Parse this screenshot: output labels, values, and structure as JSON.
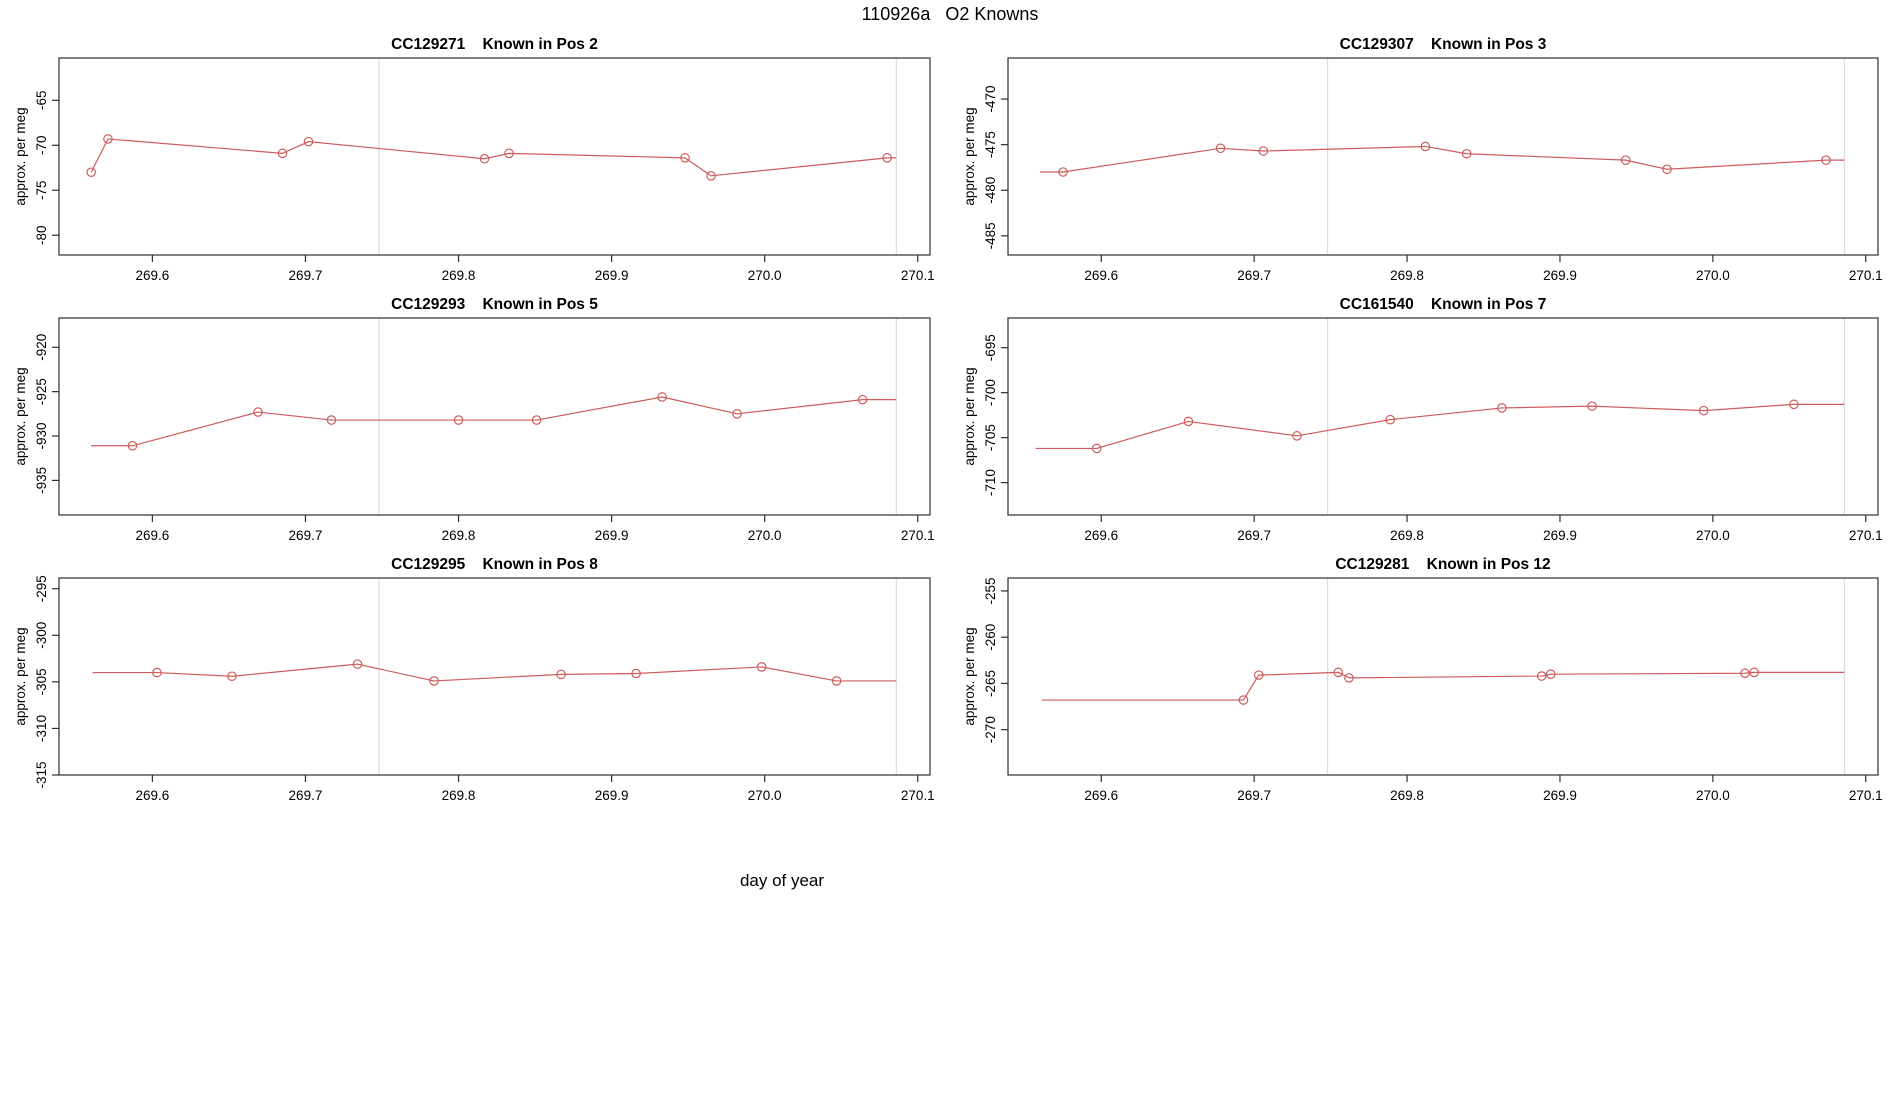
{
  "main": {
    "title": "110926a   O2 Knowns",
    "xlabel": "day of year"
  },
  "colors": {
    "series": "#CD5C5C",
    "reference_line": "#DCDCDC",
    "axis": "#2E2E2E",
    "text": "#000000",
    "background": "#FFFFFF"
  },
  "chart_data": [
    {
      "type": "line",
      "series_id": "CC129271",
      "position_label": "Known in Pos 2",
      "title": "CC129271    Known in Pos 2",
      "ylabel": "approx. per meg",
      "xlim": [
        269.539,
        270.108
      ],
      "ylim": [
        -82.2,
        -60.3
      ],
      "xticks": [
        269.6,
        269.7,
        269.8,
        269.9,
        270.0,
        270.1
      ],
      "yticks": [
        -65,
        -70,
        -75,
        -80
      ],
      "vlines": [
        269.748,
        270.086
      ],
      "points": [
        [
          269.56,
          -73.0
        ],
        [
          269.571,
          -69.3
        ],
        [
          269.685,
          -70.9
        ],
        [
          269.702,
          -69.6
        ],
        [
          269.817,
          -71.5
        ],
        [
          269.833,
          -70.9
        ],
        [
          269.948,
          -71.4
        ],
        [
          269.965,
          -73.4
        ],
        [
          270.08,
          -71.4
        ],
        [
          270.086,
          -71.4,
          0
        ]
      ]
    },
    {
      "type": "line",
      "series_id": "CC129307",
      "position_label": "Known in Pos 3",
      "title": "CC129307    Known in Pos 3",
      "ylabel": "approx. per meg",
      "xlim": [
        269.539,
        270.108
      ],
      "ylim": [
        -487.1,
        -465.5
      ],
      "xticks": [
        269.6,
        269.7,
        269.8,
        269.9,
        270.0,
        270.1
      ],
      "yticks": [
        -470,
        -475,
        -480,
        -485
      ],
      "vlines": [
        269.748,
        270.086
      ],
      "points": [
        [
          269.56,
          -478.0,
          0
        ],
        [
          269.575,
          -478.0
        ],
        [
          269.678,
          -475.4
        ],
        [
          269.706,
          -475.7
        ],
        [
          269.812,
          -475.2
        ],
        [
          269.839,
          -476.0
        ],
        [
          269.943,
          -476.7
        ],
        [
          269.97,
          -477.7
        ],
        [
          270.074,
          -476.7
        ],
        [
          270.086,
          -476.7,
          0
        ]
      ]
    },
    {
      "type": "line",
      "series_id": "CC129293",
      "position_label": "Known in Pos 5",
      "title": "CC129293    Known in Pos 5",
      "ylabel": "approx. per meg",
      "xlim": [
        269.539,
        270.108
      ],
      "ylim": [
        -938.9,
        -916.7
      ],
      "xticks": [
        269.6,
        269.7,
        269.8,
        269.9,
        270.0,
        270.1
      ],
      "yticks": [
        -920,
        -925,
        -930,
        -935
      ],
      "vlines": [
        269.748,
        270.086
      ],
      "points": [
        [
          269.56,
          -931.1,
          0
        ],
        [
          269.587,
          -931.1
        ],
        [
          269.669,
          -927.3
        ],
        [
          269.717,
          -928.2
        ],
        [
          269.8,
          -928.2
        ],
        [
          269.851,
          -928.2
        ],
        [
          269.933,
          -925.6
        ],
        [
          269.982,
          -927.5
        ],
        [
          270.064,
          -925.9
        ],
        [
          270.086,
          -925.9,
          0
        ]
      ]
    },
    {
      "type": "line",
      "series_id": "CC161540",
      "position_label": "Known in Pos 7",
      "title": "CC161540    Known in Pos 7",
      "ylabel": "approx. per meg",
      "xlim": [
        269.539,
        270.108
      ],
      "ylim": [
        -713.6,
        -691.7
      ],
      "xticks": [
        269.6,
        269.7,
        269.8,
        269.9,
        270.0,
        270.1
      ],
      "yticks": [
        -695,
        -700,
        -705,
        -710
      ],
      "vlines": [
        269.748,
        270.086
      ],
      "points": [
        [
          269.557,
          -706.2,
          0
        ],
        [
          269.597,
          -706.2
        ],
        [
          269.657,
          -703.2
        ],
        [
          269.728,
          -704.8
        ],
        [
          269.789,
          -703.0
        ],
        [
          269.862,
          -701.7
        ],
        [
          269.921,
          -701.5
        ],
        [
          269.994,
          -702.0
        ],
        [
          270.053,
          -701.3
        ],
        [
          270.086,
          -701.3,
          0
        ]
      ]
    },
    {
      "type": "line",
      "series_id": "CC129295",
      "position_label": "Known in Pos 8",
      "title": "CC129295    Known in Pos 8",
      "ylabel": "approx. per meg",
      "xlim": [
        269.539,
        270.108
      ],
      "ylim": [
        -315.0,
        -293.85
      ],
      "xticks": [
        269.6,
        269.7,
        269.8,
        269.9,
        270.0,
        270.1
      ],
      "yticks": [
        -295,
        -300,
        -305,
        -310,
        -315
      ],
      "vlines": [
        269.748,
        270.086
      ],
      "points": [
        [
          269.561,
          -304.0,
          0
        ],
        [
          269.603,
          -304.0
        ],
        [
          269.652,
          -304.4
        ],
        [
          269.734,
          -303.1
        ],
        [
          269.784,
          -304.9
        ],
        [
          269.867,
          -304.2
        ],
        [
          269.916,
          -304.1
        ],
        [
          269.998,
          -303.4
        ],
        [
          270.047,
          -304.9
        ],
        [
          270.086,
          -304.9,
          0
        ]
      ]
    },
    {
      "type": "line",
      "series_id": "CC129281",
      "position_label": "Known in Pos 12",
      "title": "CC129281    Known in Pos 12",
      "ylabel": "approx. per meg",
      "xlim": [
        269.539,
        270.108
      ],
      "ylim": [
        -274.9,
        -253.6
      ],
      "xticks": [
        269.6,
        269.7,
        269.8,
        269.9,
        270.0,
        270.1
      ],
      "yticks": [
        -255,
        -260,
        -265,
        -270
      ],
      "vlines": [
        269.748,
        270.086
      ],
      "points": [
        [
          269.561,
          -266.8,
          0
        ],
        [
          269.693,
          -266.8
        ],
        [
          269.703,
          -264.1
        ],
        [
          269.755,
          -263.8
        ],
        [
          269.762,
          -264.4
        ],
        [
          269.888,
          -264.2
        ],
        [
          269.894,
          -264.0
        ],
        [
          270.021,
          -263.9
        ],
        [
          270.027,
          -263.8
        ],
        [
          270.086,
          -263.8,
          0
        ]
      ]
    }
  ]
}
